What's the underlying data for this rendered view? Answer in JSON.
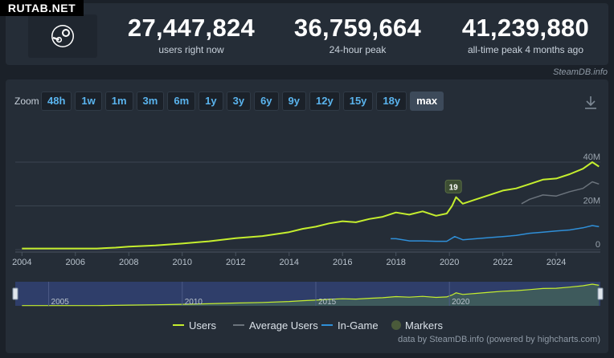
{
  "watermark": "RUTAB.NET",
  "stats": [
    {
      "value": "27,447,824",
      "label": "users right now"
    },
    {
      "value": "36,759,664",
      "label": "24-hour peak"
    },
    {
      "value": "41,239,880",
      "label": "all-time peak 4 months ago"
    }
  ],
  "credit_top": "SteamDB.info",
  "zoom": {
    "label": "Zoom",
    "options": [
      "48h",
      "1w",
      "1m",
      "3m",
      "6m",
      "1y",
      "3y",
      "6y",
      "9y",
      "12y",
      "15y",
      "18y",
      "max"
    ],
    "active": "max"
  },
  "credit": "data by SteamDB.info (powered by highcharts.com)",
  "colors": {
    "users": "#c5ee2e",
    "average": "#6b737c",
    "ingame": "#2f8fd8",
    "marker": "#4a5a3a"
  },
  "chart_data": {
    "type": "line",
    "x_unit": "year",
    "xlim": [
      2003.75,
      2025.65
    ],
    "ylim": [
      0,
      40000000
    ],
    "y_ticks": [
      {
        "value": 0,
        "label": "0"
      },
      {
        "value": 20000000,
        "label": "20M"
      },
      {
        "value": 40000000,
        "label": "40M"
      }
    ],
    "x_ticks": [
      2004,
      2006,
      2008,
      2010,
      2012,
      2014,
      2016,
      2018,
      2020,
      2022,
      2024
    ],
    "grid": true,
    "legend_position": "bottom",
    "series": [
      {
        "name": "Users",
        "color": "#c5ee2e",
        "x": [
          2004.0,
          2005.0,
          2005.8,
          2006.8,
          2007.5,
          2008.0,
          2009.0,
          2010.0,
          2011.0,
          2012.0,
          2013.0,
          2014.0,
          2014.5,
          2015.0,
          2015.5,
          2016.0,
          2016.5,
          2017.0,
          2017.5,
          2018.0,
          2018.5,
          2019.0,
          2019.5,
          2019.9,
          2020.1,
          2020.25,
          2020.5,
          2021.0,
          2021.5,
          2022.0,
          2022.5,
          2023.0,
          2023.5,
          2024.0,
          2024.5,
          2025.0,
          2025.35,
          2025.6
        ],
        "values": [
          500000,
          500000,
          500000,
          500000,
          900000,
          1400000,
          1900000,
          2800000,
          3800000,
          5200000,
          6200000,
          8000000,
          9500000,
          10500000,
          12000000,
          13000000,
          12500000,
          14000000,
          15000000,
          17000000,
          16000000,
          17500000,
          15500000,
          16500000,
          20000000,
          24000000,
          21000000,
          23000000,
          25000000,
          27000000,
          28000000,
          30000000,
          32000000,
          32500000,
          34500000,
          37000000,
          40000000,
          38000000
        ]
      },
      {
        "name": "Average Users",
        "color": "#6b737c",
        "x": [
          2022.7,
          2023.0,
          2023.5,
          2024.0,
          2024.5,
          2025.0,
          2025.35,
          2025.6
        ],
        "values": [
          21000000,
          23000000,
          25000000,
          24500000,
          26500000,
          28000000,
          31000000,
          30000000
        ]
      },
      {
        "name": "In-Game",
        "color": "#2f8fd8",
        "x": [
          2017.8,
          2018.0,
          2018.5,
          2019.0,
          2019.5,
          2019.9,
          2020.2,
          2020.5,
          2021.0,
          2021.5,
          2022.0,
          2022.5,
          2023.0,
          2023.5,
          2024.0,
          2024.5,
          2025.0,
          2025.35,
          2025.6
        ],
        "values": [
          5000000,
          5000000,
          4000000,
          4000000,
          3800000,
          3800000,
          6000000,
          4500000,
          5000000,
          5500000,
          6000000,
          6500000,
          7500000,
          8000000,
          8500000,
          9000000,
          10000000,
          11000000,
          10500000
        ]
      }
    ],
    "markers": [
      {
        "x": 2020.15,
        "label": "19"
      }
    ],
    "navigator_ticks": [
      2005,
      2010,
      2015,
      2020
    ]
  }
}
